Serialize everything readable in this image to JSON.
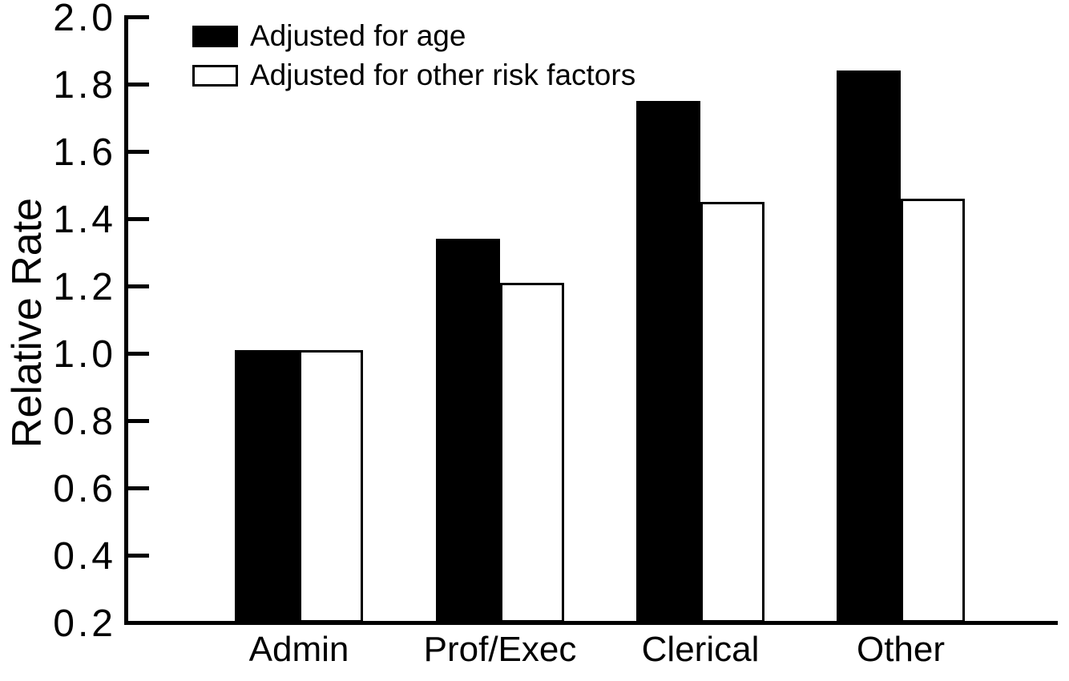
{
  "chart_data": {
    "type": "bar",
    "title": "",
    "xlabel": "",
    "ylabel": "Relative Rate",
    "categories": [
      "Admin",
      "Prof/Exec",
      "Clerical",
      "Other"
    ],
    "series": [
      {
        "name": "Adjusted for age",
        "color": "#000000",
        "values": [
          1.01,
          1.34,
          1.75,
          1.84
        ]
      },
      {
        "name": "Adjusted for other risk factors",
        "color": "#ffffff",
        "values": [
          1.01,
          1.21,
          1.45,
          1.46
        ]
      }
    ],
    "ylim": [
      0.2,
      2.0
    ],
    "ytick_step": 0.2,
    "ytick_labels": [
      "0.2",
      "0.4",
      "0.6",
      "0.8",
      "1.0",
      "1.2",
      "1.4",
      "1.6",
      "1.8",
      "2.0"
    ],
    "grid": false,
    "legend_position": "top-left-inside",
    "bar_outline_color": "#000000",
    "axis_color": "#000000",
    "background_color": "#ffffff"
  }
}
